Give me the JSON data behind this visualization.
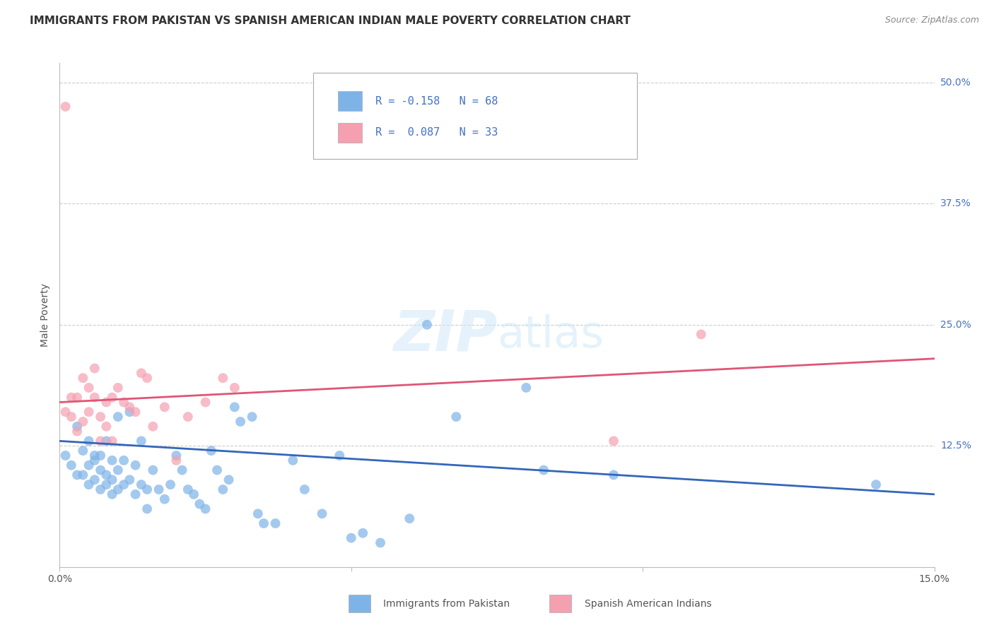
{
  "title": "IMMIGRANTS FROM PAKISTAN VS SPANISH AMERICAN INDIAN MALE POVERTY CORRELATION CHART",
  "source": "Source: ZipAtlas.com",
  "ylabel": "Male Poverty",
  "xlim": [
    0.0,
    0.15
  ],
  "ylim": [
    0.0,
    0.52
  ],
  "blue_color": "#7EB3E8",
  "pink_color": "#F4A0B0",
  "blue_line_color": "#3366BB",
  "pink_line_color": "#E05577",
  "legend_label_blue": "Immigrants from Pakistan",
  "legend_label_pink": "Spanish American Indians",
  "watermark_zip": "ZIP",
  "watermark_atlas": "atlas",
  "blue_scatter_x": [
    0.001,
    0.002,
    0.003,
    0.003,
    0.004,
    0.004,
    0.005,
    0.005,
    0.005,
    0.006,
    0.006,
    0.006,
    0.007,
    0.007,
    0.007,
    0.008,
    0.008,
    0.008,
    0.009,
    0.009,
    0.009,
    0.01,
    0.01,
    0.01,
    0.011,
    0.011,
    0.012,
    0.012,
    0.013,
    0.013,
    0.014,
    0.014,
    0.015,
    0.015,
    0.016,
    0.017,
    0.018,
    0.019,
    0.02,
    0.021,
    0.022,
    0.023,
    0.024,
    0.025,
    0.026,
    0.027,
    0.028,
    0.029,
    0.03,
    0.031,
    0.033,
    0.034,
    0.035,
    0.037,
    0.04,
    0.042,
    0.045,
    0.048,
    0.05,
    0.052,
    0.055,
    0.06,
    0.063,
    0.068,
    0.08,
    0.083,
    0.095,
    0.14
  ],
  "blue_scatter_y": [
    0.115,
    0.105,
    0.095,
    0.145,
    0.095,
    0.12,
    0.085,
    0.105,
    0.13,
    0.09,
    0.11,
    0.115,
    0.08,
    0.1,
    0.115,
    0.085,
    0.095,
    0.13,
    0.075,
    0.09,
    0.11,
    0.08,
    0.1,
    0.155,
    0.085,
    0.11,
    0.09,
    0.16,
    0.075,
    0.105,
    0.085,
    0.13,
    0.08,
    0.06,
    0.1,
    0.08,
    0.07,
    0.085,
    0.115,
    0.1,
    0.08,
    0.075,
    0.065,
    0.06,
    0.12,
    0.1,
    0.08,
    0.09,
    0.165,
    0.15,
    0.155,
    0.055,
    0.045,
    0.045,
    0.11,
    0.08,
    0.055,
    0.115,
    0.03,
    0.035,
    0.025,
    0.05,
    0.25,
    0.155,
    0.185,
    0.1,
    0.095,
    0.085
  ],
  "pink_scatter_x": [
    0.001,
    0.001,
    0.002,
    0.002,
    0.003,
    0.003,
    0.004,
    0.004,
    0.005,
    0.005,
    0.006,
    0.006,
    0.007,
    0.007,
    0.008,
    0.008,
    0.009,
    0.009,
    0.01,
    0.011,
    0.012,
    0.013,
    0.014,
    0.015,
    0.016,
    0.018,
    0.02,
    0.022,
    0.025,
    0.028,
    0.03,
    0.095,
    0.11
  ],
  "pink_scatter_y": [
    0.475,
    0.16,
    0.155,
    0.175,
    0.14,
    0.175,
    0.195,
    0.15,
    0.16,
    0.185,
    0.175,
    0.205,
    0.155,
    0.13,
    0.145,
    0.17,
    0.13,
    0.175,
    0.185,
    0.17,
    0.165,
    0.16,
    0.2,
    0.195,
    0.145,
    0.165,
    0.11,
    0.155,
    0.17,
    0.195,
    0.185,
    0.13,
    0.24
  ],
  "blue_trend_x": [
    0.0,
    0.15
  ],
  "blue_trend_y": [
    0.13,
    0.075
  ],
  "pink_trend_x": [
    0.0,
    0.15
  ],
  "pink_trend_y": [
    0.17,
    0.215
  ],
  "background_color": "#ffffff",
  "grid_color": "#cccccc"
}
